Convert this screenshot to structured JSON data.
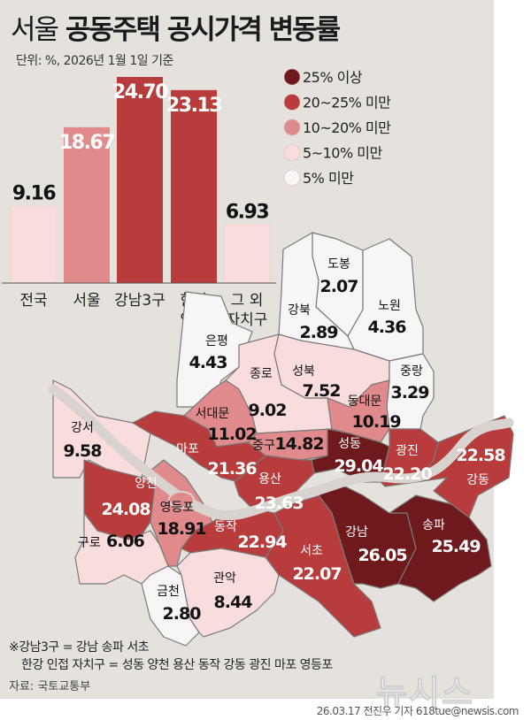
{
  "title": {
    "light": "서울",
    "bold": "공동주택 공시가격 변동률"
  },
  "unit": "단위: %, 2026년 1월 1일 기준",
  "legend": [
    {
      "label": "25% 이상",
      "color": "#6e1a1c"
    },
    {
      "label": "20~25% 미만",
      "color": "#b73c3b"
    },
    {
      "label": "10~20% 미만",
      "color": "#e08a8b"
    },
    {
      "label": "5~10% 미만",
      "color": "#f9dcdc"
    },
    {
      "label": "5% 미만",
      "color": "#f7f5f5"
    }
  ],
  "chart_data": [
    {
      "type": "bar",
      "categories": [
        "전국",
        "서울",
        "강남3구",
        "한강 인접",
        "그 외 자치구"
      ],
      "values": [
        9.16,
        18.67,
        24.7,
        23.13,
        6.93
      ],
      "ylim": [
        0,
        25
      ]
    },
    {
      "type": "choropleth",
      "districts": [
        {
          "name": "도봉",
          "value": 2.07
        },
        {
          "name": "강북",
          "value": 2.89
        },
        {
          "name": "노원",
          "value": 4.36
        },
        {
          "name": "은평",
          "value": 4.43
        },
        {
          "name": "종로",
          "value": 9.02
        },
        {
          "name": "성북",
          "value": 7.52
        },
        {
          "name": "중랑",
          "value": 3.29
        },
        {
          "name": "동대문",
          "value": 10.19
        },
        {
          "name": "서대문",
          "value": 11.02
        },
        {
          "name": "강서",
          "value": 9.58
        },
        {
          "name": "마포",
          "value": 21.36
        },
        {
          "name": "중구",
          "value": 14.82
        },
        {
          "name": "성동",
          "value": 29.04
        },
        {
          "name": "광진",
          "value": 22.2
        },
        {
          "name": "강동",
          "value": 22.58
        },
        {
          "name": "양천",
          "value": 24.08
        },
        {
          "name": "용산",
          "value": 23.63
        },
        {
          "name": "영등포",
          "value": 18.91
        },
        {
          "name": "동작",
          "value": 22.94
        },
        {
          "name": "구로",
          "value": 6.06
        },
        {
          "name": "강남",
          "value": 26.05
        },
        {
          "name": "송파",
          "value": 25.49
        },
        {
          "name": "서초",
          "value": 22.07
        },
        {
          "name": "금천",
          "value": 2.8
        },
        {
          "name": "관악",
          "value": 8.44
        }
      ]
    }
  ],
  "notes": [
    "※강남3구 = 강남 송파 서초",
    "한강 인접 자치구 = 성동 양천 용산 동작 강동 광진 마포 영등포"
  ],
  "source": "자료: 국토교통부",
  "credit": "26.03.17 전진우 기자 618tue@newsis.com",
  "logo": "뉴시스"
}
